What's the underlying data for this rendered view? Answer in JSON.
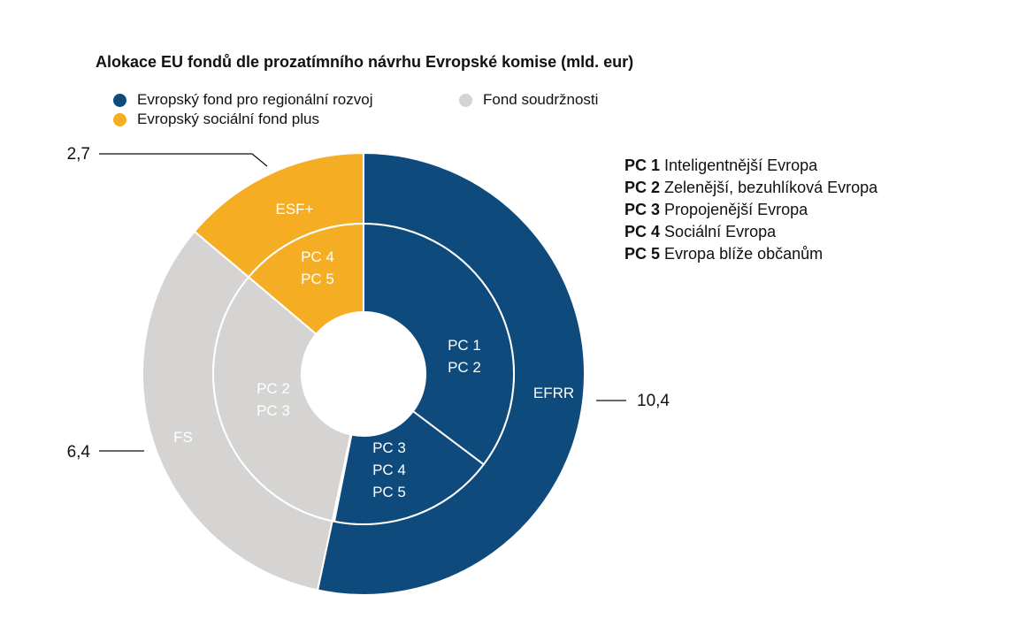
{
  "chart_data": {
    "type": "pie",
    "title": "Alokace EU fondů dle prozatímního návrhu Evropské komise (mld. eur)",
    "legend": [
      {
        "label": "Evropský fond pro regionální rozvoj",
        "color": "#0e4a7b"
      },
      {
        "label": "Evropský sociální fond plus",
        "color": "#f5ae23"
      },
      {
        "label": "Fond soudržnosti",
        "color": "#d5d4d3"
      }
    ],
    "outer_ring": [
      {
        "label": "EFRR",
        "value": 10.4,
        "value_label": "10,4",
        "color": "#0e4a7b"
      },
      {
        "label": "FS",
        "value": 6.4,
        "value_label": "6,4",
        "color": "#d5d4d3"
      },
      {
        "label": "ESF+",
        "value": 2.7,
        "value_label": "2,7",
        "color": "#f5ae23"
      }
    ],
    "inner_ring": [
      {
        "label": "PC 1\nPC 2",
        "fund": "EFRR",
        "color": "#0e4a7b"
      },
      {
        "label": "PC 3\nPC 4\nPC 5",
        "fund": "EFRR",
        "color": "#0e4a7b"
      },
      {
        "label": "PC 2\nPC 3",
        "fund": "FS",
        "color": "#d5d4d3"
      },
      {
        "label": "PC 4\nPC 5",
        "fund": "ESF+",
        "color": "#f5ae23"
      }
    ],
    "policy_objectives": [
      {
        "code": "PC 1",
        "text": "Inteligentnější Evropa"
      },
      {
        "code": "PC 2",
        "text": "Zelenější, bezuhlíková Evropa"
      },
      {
        "code": "PC 3",
        "text": "Propojenější Evropa"
      },
      {
        "code": "PC 4",
        "text": "Sociální Evropa"
      },
      {
        "code": "PC 5",
        "text": "Evropa blíže občanům"
      }
    ]
  }
}
